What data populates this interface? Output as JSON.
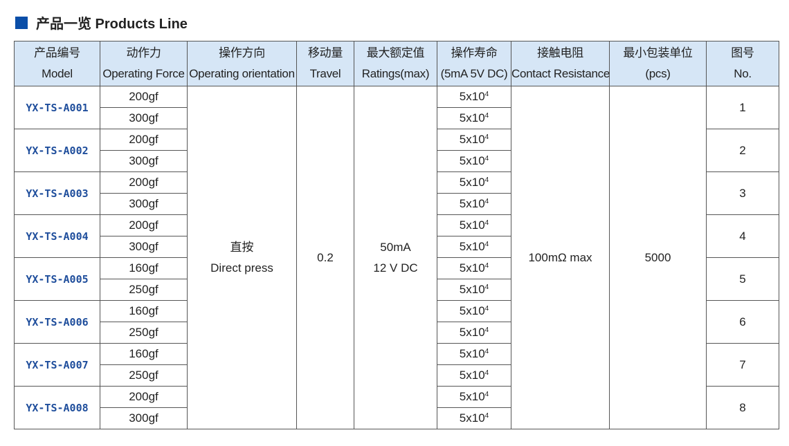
{
  "title": "产品一览 Products Line",
  "colors": {
    "accent": "#0a4ea8",
    "header_bg": "#d6e6f6",
    "model_text": "#1f4e9c"
  },
  "headers": [
    {
      "cn": "产品编号",
      "en": "Model"
    },
    {
      "cn": "动作力",
      "en": "Operating Force"
    },
    {
      "cn": "操作方向",
      "en": "Operating orientation"
    },
    {
      "cn": "移动量",
      "en": "Travel"
    },
    {
      "cn": "最大额定值",
      "en": "Ratings(max)"
    },
    {
      "cn": "操作寿命",
      "en": "(5mA 5V DC)"
    },
    {
      "cn": "接触电阻",
      "en": "Contact Resistance"
    },
    {
      "cn": "最小包装单位",
      "en": "(pcs)"
    },
    {
      "cn": "图号",
      "en": "No."
    }
  ],
  "shared": {
    "orientation_cn": "直按",
    "orientation_en": "Direct press",
    "travel": "0.2",
    "rating_1": "50mA",
    "rating_2": "12 V DC",
    "contact_resistance": "100mΩ max",
    "min_pack": "5000"
  },
  "life_base": "5x10",
  "life_exp": "4",
  "products": [
    {
      "model": "YX-TS-A001",
      "forces": [
        "200gf",
        "300gf"
      ],
      "no": "1"
    },
    {
      "model": "YX-TS-A002",
      "forces": [
        "200gf",
        "300gf"
      ],
      "no": "2"
    },
    {
      "model": "YX-TS-A003",
      "forces": [
        "200gf",
        "300gf"
      ],
      "no": "3"
    },
    {
      "model": "YX-TS-A004",
      "forces": [
        "200gf",
        "300gf"
      ],
      "no": "4"
    },
    {
      "model": "YX-TS-A005",
      "forces": [
        "160gf",
        "250gf"
      ],
      "no": "5"
    },
    {
      "model": "YX-TS-A006",
      "forces": [
        "160gf",
        "250gf"
      ],
      "no": "6"
    },
    {
      "model": "YX-TS-A007",
      "forces": [
        "160gf",
        "250gf"
      ],
      "no": "7"
    },
    {
      "model": "YX-TS-A008",
      "forces": [
        "200gf",
        "300gf"
      ],
      "no": "8"
    }
  ]
}
